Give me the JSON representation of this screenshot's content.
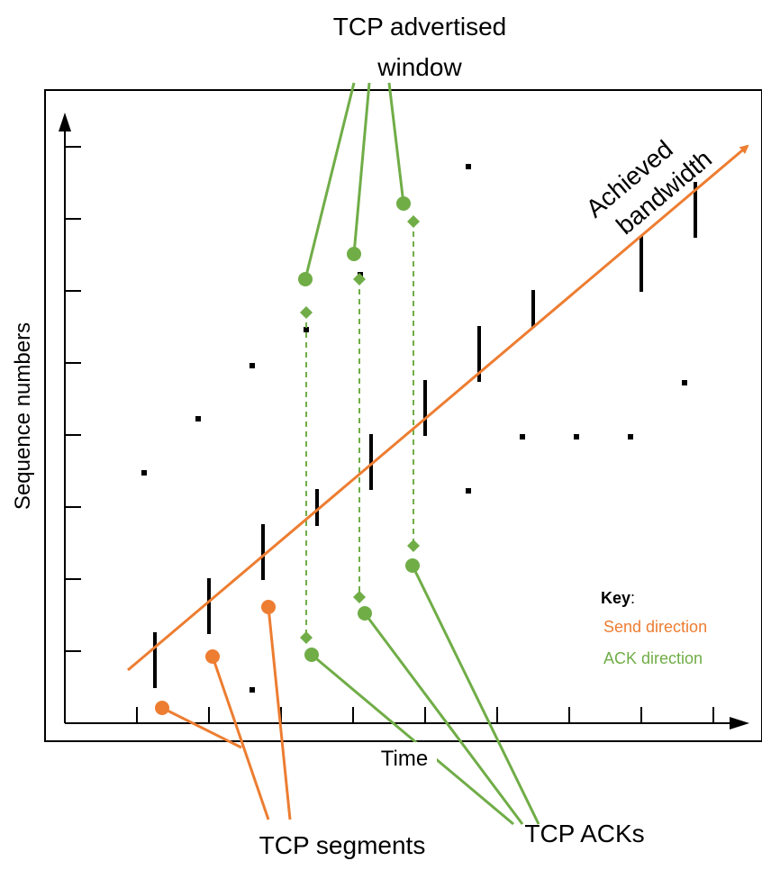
{
  "labels": {
    "window_line1": "TCP advertised",
    "window_line2": "window",
    "bandwidth_line1": "Achieved",
    "bandwidth_line2": "bandwidth",
    "y_axis": "Sequence numbers",
    "x_axis": "Time",
    "segments": "TCP segments",
    "acks": "TCP ACKs"
  },
  "key": {
    "title": "Key",
    "colon": ":",
    "send": "Send direction",
    "ack": "ACK direction"
  },
  "colors": {
    "send": "#ED7D31",
    "ack": "#70AD47",
    "ink": "#000000"
  }
}
